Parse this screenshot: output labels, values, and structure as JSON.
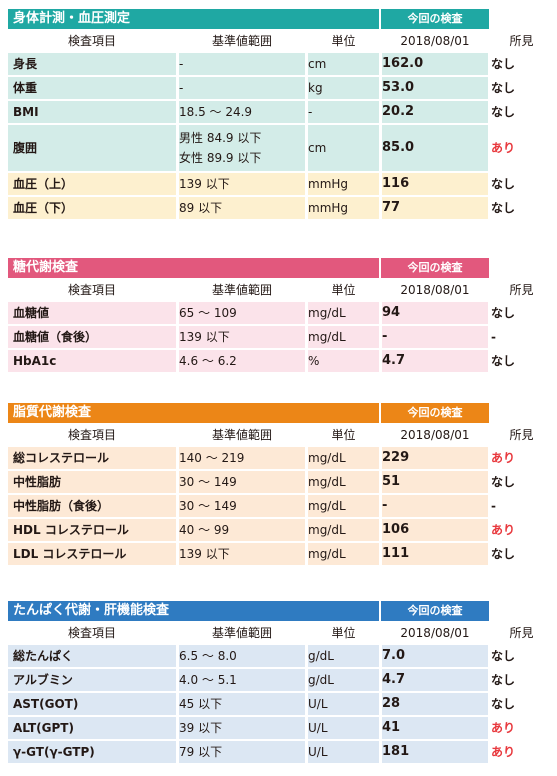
{
  "colors": {
    "teal": "#1fa8a3",
    "teal_light": "#d3ece8",
    "cream": "#fdf0cf",
    "pink": "#e2587d",
    "pink_light": "#fbe3ea",
    "orange": "#ec8617",
    "orange_light": "#fde9d6",
    "blue": "#2f7bc1",
    "blue_light": "#dce7f3",
    "finding_yes": "#e8383d"
  },
  "columns": {
    "item": "検査項目",
    "range": "基準値範囲",
    "unit": "単位",
    "date": "2018/08/01",
    "finding": "所見"
  },
  "latest_label": "今回の検査",
  "sections": [
    {
      "title": "身体計測・血圧測定",
      "rows": [
        {
          "name": "身長",
          "range": "-",
          "unit": "cm",
          "result": "162.0",
          "finding": "なし"
        },
        {
          "name": "体重",
          "range": "-",
          "unit": "kg",
          "result": "53.0",
          "finding": "なし"
        },
        {
          "name": "BMI",
          "range": "18.5 ～ 24.9",
          "unit": "-",
          "result": "20.2",
          "finding": "なし"
        },
        {
          "name": "腹囲",
          "range": "男性 84.9 以下\n女性 89.9 以下",
          "unit": "cm",
          "result": "85.0",
          "finding": "あり"
        },
        {
          "name": "血圧（上）",
          "range": "139 以下",
          "unit": "mmHg",
          "result": "116",
          "finding": "なし"
        },
        {
          "name": "血圧（下）",
          "range": "89 以下",
          "unit": "mmHg",
          "result": "77",
          "finding": "なし"
        }
      ]
    },
    {
      "title": "糖代謝検査",
      "rows": [
        {
          "name": "血糖値",
          "range": "65 ～ 109",
          "unit": "mg/dL",
          "result": "94",
          "finding": "なし"
        },
        {
          "name": "血糖値（食後）",
          "range": "139 以下",
          "unit": "mg/dL",
          "result": "-",
          "finding": "-"
        },
        {
          "name": "HbA1c",
          "range": "4.6 ～ 6.2",
          "unit": "%",
          "result": "4.7",
          "finding": "なし"
        }
      ]
    },
    {
      "title": "脂質代謝検査",
      "rows": [
        {
          "name": "総コレステロール",
          "range": "140 ～ 219",
          "unit": "mg/dL",
          "result": "229",
          "finding": "あり"
        },
        {
          "name": "中性脂肪",
          "range": "30 ～ 149",
          "unit": "mg/dL",
          "result": "51",
          "finding": "なし"
        },
        {
          "name": "中性脂肪（食後）",
          "range": "30 ～ 149",
          "unit": "mg/dL",
          "result": "-",
          "finding": "-"
        },
        {
          "name": "HDL コレステロール",
          "range": "40 ～ 99",
          "unit": "mg/dL",
          "result": "106",
          "finding": "あり"
        },
        {
          "name": "LDL コレステロール",
          "range": "139 以下",
          "unit": "mg/dL",
          "result": "111",
          "finding": "なし"
        }
      ]
    },
    {
      "title": "たんぱく代謝・肝機能検査",
      "rows": [
        {
          "name": "総たんぱく",
          "range": "6.5 ～ 8.0",
          "unit": "g/dL",
          "result": "7.0",
          "finding": "なし"
        },
        {
          "name": "アルブミン",
          "range": "4.0 ～ 5.1",
          "unit": "g/dL",
          "result": "4.7",
          "finding": "なし"
        },
        {
          "name": "AST(GOT)",
          "range": "45 以下",
          "unit": "U/L",
          "result": "28",
          "finding": "なし"
        },
        {
          "name": "ALT(GPT)",
          "range": "39 以下",
          "unit": "U/L",
          "result": "41",
          "finding": "あり"
        },
        {
          "name": "γ-GT(γ-GTP)",
          "range": "79 以下",
          "unit": "U/L",
          "result": "181",
          "finding": "あり"
        }
      ]
    }
  ]
}
